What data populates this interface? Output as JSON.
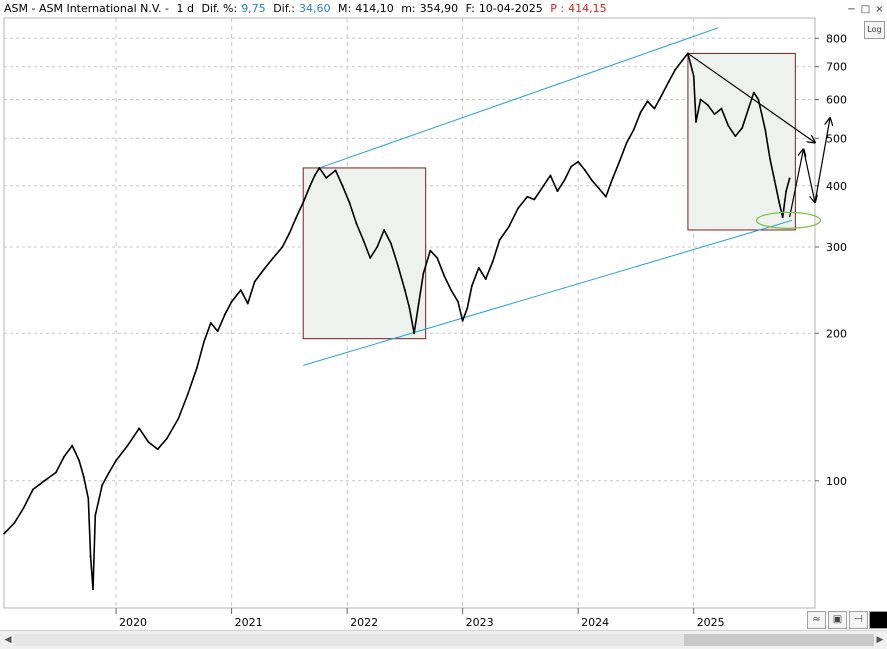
{
  "header": {
    "symbol": "ASM - ASM International N.V. -",
    "interval": "1 d",
    "dif_pct_label": "Dif. %:",
    "dif_pct_value": "9,75",
    "dif_label": "Dif.:",
    "dif_value": "34,60",
    "max_label": "M:",
    "max_value": "414,10",
    "min_label": "m:",
    "min_value": "354,90",
    "date_label": "F:",
    "date_value": "10-04-2025",
    "price_label": "P :",
    "price_value": "414,15"
  },
  "controls": {
    "log_button": "Log",
    "minimize": "−",
    "restore": "□",
    "close": "×"
  },
  "colors": {
    "price": "#000000",
    "channel": "#29a3d6",
    "box_border": "#7a1f1f",
    "box_fill": "#eef2ef",
    "ellipse": "#7cc242",
    "grid": "#c8c8c8"
  },
  "chart_data": {
    "type": "line",
    "scale": "log",
    "ylim": [
      55,
      880
    ],
    "y_ticks": [
      100,
      200,
      300,
      400,
      500,
      600,
      700,
      800
    ],
    "x_ticks": [
      "2020",
      "2021",
      "2022",
      "2023",
      "2024",
      "2025"
    ],
    "x_range": [
      2019.03,
      2026.05
    ],
    "series": [
      {
        "values": [
          [
            2019.03,
            78
          ],
          [
            2019.12,
            82
          ],
          [
            2019.2,
            88
          ],
          [
            2019.28,
            96
          ],
          [
            2019.38,
            100
          ],
          [
            2019.48,
            104
          ],
          [
            2019.55,
            112
          ],
          [
            2019.62,
            118
          ],
          [
            2019.68,
            110
          ],
          [
            2019.72,
            102
          ],
          [
            2019.76,
            92
          ],
          [
            2019.78,
            70
          ],
          [
            2019.8,
            60
          ],
          [
            2019.82,
            85
          ],
          [
            2019.88,
            98
          ],
          [
            2019.94,
            104
          ],
          [
            2020.0,
            110
          ],
          [
            2020.1,
            118
          ],
          [
            2020.2,
            128
          ],
          [
            2020.28,
            120
          ],
          [
            2020.36,
            116
          ],
          [
            2020.44,
            122
          ],
          [
            2020.54,
            134
          ],
          [
            2020.62,
            150
          ],
          [
            2020.7,
            170
          ],
          [
            2020.76,
            192
          ],
          [
            2020.82,
            210
          ],
          [
            2020.88,
            202
          ],
          [
            2020.94,
            218
          ],
          [
            2021.0,
            232
          ],
          [
            2021.08,
            245
          ],
          [
            2021.14,
            230
          ],
          [
            2021.2,
            255
          ],
          [
            2021.28,
            270
          ],
          [
            2021.36,
            285
          ],
          [
            2021.44,
            300
          ],
          [
            2021.5,
            320
          ],
          [
            2021.56,
            345
          ],
          [
            2021.62,
            370
          ],
          [
            2021.68,
            400
          ],
          [
            2021.72,
            420
          ],
          [
            2021.76,
            435
          ],
          [
            2021.82,
            415
          ],
          [
            2021.9,
            430
          ],
          [
            2021.96,
            400
          ],
          [
            2022.02,
            370
          ],
          [
            2022.08,
            335
          ],
          [
            2022.14,
            310
          ],
          [
            2022.2,
            285
          ],
          [
            2022.26,
            300
          ],
          [
            2022.32,
            325
          ],
          [
            2022.38,
            305
          ],
          [
            2022.44,
            275
          ],
          [
            2022.5,
            245
          ],
          [
            2022.54,
            225
          ],
          [
            2022.58,
            200
          ],
          [
            2022.62,
            230
          ],
          [
            2022.66,
            265
          ],
          [
            2022.72,
            295
          ],
          [
            2022.78,
            285
          ],
          [
            2022.84,
            262
          ],
          [
            2022.9,
            245
          ],
          [
            2022.96,
            232
          ],
          [
            2023.0,
            212
          ],
          [
            2023.04,
            225
          ],
          [
            2023.08,
            250
          ],
          [
            2023.14,
            272
          ],
          [
            2023.2,
            258
          ],
          [
            2023.26,
            280
          ],
          [
            2023.32,
            310
          ],
          [
            2023.4,
            330
          ],
          [
            2023.48,
            360
          ],
          [
            2023.56,
            380
          ],
          [
            2023.62,
            375
          ],
          [
            2023.7,
            400
          ],
          [
            2023.76,
            420
          ],
          [
            2023.82,
            390
          ],
          [
            2023.88,
            410
          ],
          [
            2023.94,
            438
          ],
          [
            2024.0,
            448
          ],
          [
            2024.06,
            430
          ],
          [
            2024.12,
            410
          ],
          [
            2024.18,
            395
          ],
          [
            2024.24,
            380
          ],
          [
            2024.3,
            415
          ],
          [
            2024.36,
            450
          ],
          [
            2024.42,
            490
          ],
          [
            2024.48,
            520
          ],
          [
            2024.54,
            565
          ],
          [
            2024.6,
            595
          ],
          [
            2024.66,
            575
          ],
          [
            2024.72,
            610
          ],
          [
            2024.78,
            650
          ],
          [
            2024.84,
            690
          ],
          [
            2024.9,
            720
          ],
          [
            2024.95,
            745
          ],
          [
            2025.0,
            670
          ],
          [
            2025.02,
            540
          ],
          [
            2025.06,
            600
          ],
          [
            2025.12,
            585
          ],
          [
            2025.18,
            560
          ],
          [
            2025.24,
            575
          ],
          [
            2025.3,
            530
          ],
          [
            2025.36,
            505
          ],
          [
            2025.42,
            525
          ],
          [
            2025.48,
            580
          ],
          [
            2025.52,
            620
          ],
          [
            2025.56,
            600
          ],
          [
            2025.62,
            520
          ],
          [
            2025.66,
            455
          ],
          [
            2025.7,
            410
          ],
          [
            2025.74,
            370
          ],
          [
            2025.77,
            345
          ],
          [
            2025.8,
            390
          ],
          [
            2025.83,
            414
          ]
        ]
      }
    ],
    "annotations": {
      "channel_upper": [
        [
          2021.76,
          435
        ],
        [
          2025.21,
          840
        ]
      ],
      "channel_lower": [
        [
          2021.62,
          172
        ],
        [
          2025.85,
          340
        ]
      ],
      "box_2022": {
        "x": [
          2021.62,
          2022.68
        ],
        "y": [
          195,
          435
        ]
      },
      "box_2025": {
        "x": [
          2024.95,
          2025.88
        ],
        "y": [
          325,
          745
        ]
      },
      "resistance_line": [
        [
          2024.95,
          745
        ],
        [
          2026.05,
          490
        ]
      ],
      "projection_path": [
        [
          2025.83,
          345
        ],
        [
          2025.95,
          475
        ],
        [
          2026.05,
          370
        ],
        [
          2026.18,
          550
        ]
      ],
      "ellipse_center": [
        2025.82,
        340
      ]
    }
  }
}
